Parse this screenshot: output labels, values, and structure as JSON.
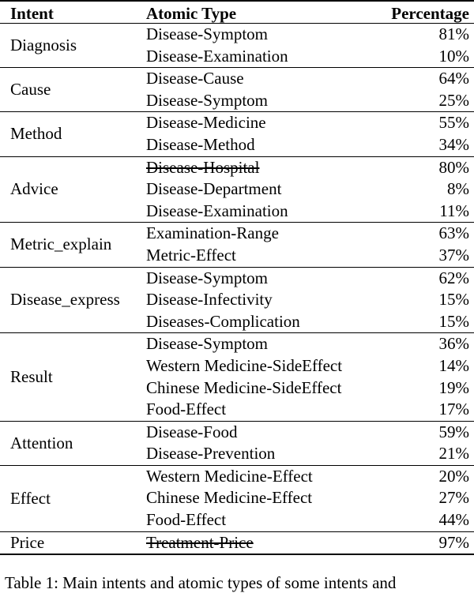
{
  "table": {
    "headers": {
      "intent": "Intent",
      "type": "Atomic Type",
      "pct": "Percentage"
    },
    "groups": [
      {
        "intent": "Diagnosis",
        "rows": [
          {
            "type": "Disease-Symptom",
            "pct": "81%",
            "strike": false
          },
          {
            "type": "Disease-Examination",
            "pct": "10%",
            "strike": false
          }
        ]
      },
      {
        "intent": "Cause",
        "rows": [
          {
            "type": "Disease-Cause",
            "pct": "64%",
            "strike": false
          },
          {
            "type": "Disease-Symptom",
            "pct": "25%",
            "strike": false
          }
        ]
      },
      {
        "intent": "Method",
        "rows": [
          {
            "type": "Disease-Medicine",
            "pct": "55%",
            "strike": false
          },
          {
            "type": "Disease-Method",
            "pct": "34%",
            "strike": false
          }
        ]
      },
      {
        "intent": "Advice",
        "rows": [
          {
            "type": "Disease-Hospital",
            "pct": "80%",
            "strike": true
          },
          {
            "type": "Disease-Department",
            "pct": "8%",
            "strike": false
          },
          {
            "type": "Disease-Examination",
            "pct": "11%",
            "strike": false
          }
        ]
      },
      {
        "intent": "Metric_explain",
        "rows": [
          {
            "type": "Examination-Range",
            "pct": "63%",
            "strike": false
          },
          {
            "type": "Metric-Effect",
            "pct": "37%",
            "strike": false
          }
        ]
      },
      {
        "intent": "Disease_express",
        "rows": [
          {
            "type": "Disease-Symptom",
            "pct": "62%",
            "strike": false
          },
          {
            "type": "Disease-Infectivity",
            "pct": "15%",
            "strike": false
          },
          {
            "type": "Diseases-Complication",
            "pct": "15%",
            "strike": false
          }
        ]
      },
      {
        "intent": "Result",
        "rows": [
          {
            "type": "Disease-Symptom",
            "pct": "36%",
            "strike": false
          },
          {
            "type": "Western Medicine-SideEffect",
            "pct": "14%",
            "strike": false
          },
          {
            "type": "Chinese Medicine-SideEffect",
            "pct": "19%",
            "strike": false
          },
          {
            "type": "Food-Effect",
            "pct": "17%",
            "strike": false
          }
        ]
      },
      {
        "intent": "Attention",
        "rows": [
          {
            "type": "Disease-Food",
            "pct": "59%",
            "strike": false
          },
          {
            "type": "Disease-Prevention",
            "pct": "21%",
            "strike": false
          }
        ]
      },
      {
        "intent": "Effect",
        "rows": [
          {
            "type": "Western Medicine-Effect",
            "pct": "20%",
            "strike": false
          },
          {
            "type": "Chinese Medicine-Effect",
            "pct": "27%",
            "strike": false
          },
          {
            "type": "Food-Effect",
            "pct": "44%",
            "strike": false
          }
        ]
      },
      {
        "intent": "Price",
        "rows": [
          {
            "type": "Treatment-Price",
            "pct": "97%",
            "strike": true
          }
        ]
      }
    ]
  },
  "caption": "Table 1: Main intents and atomic types of some intents and"
}
